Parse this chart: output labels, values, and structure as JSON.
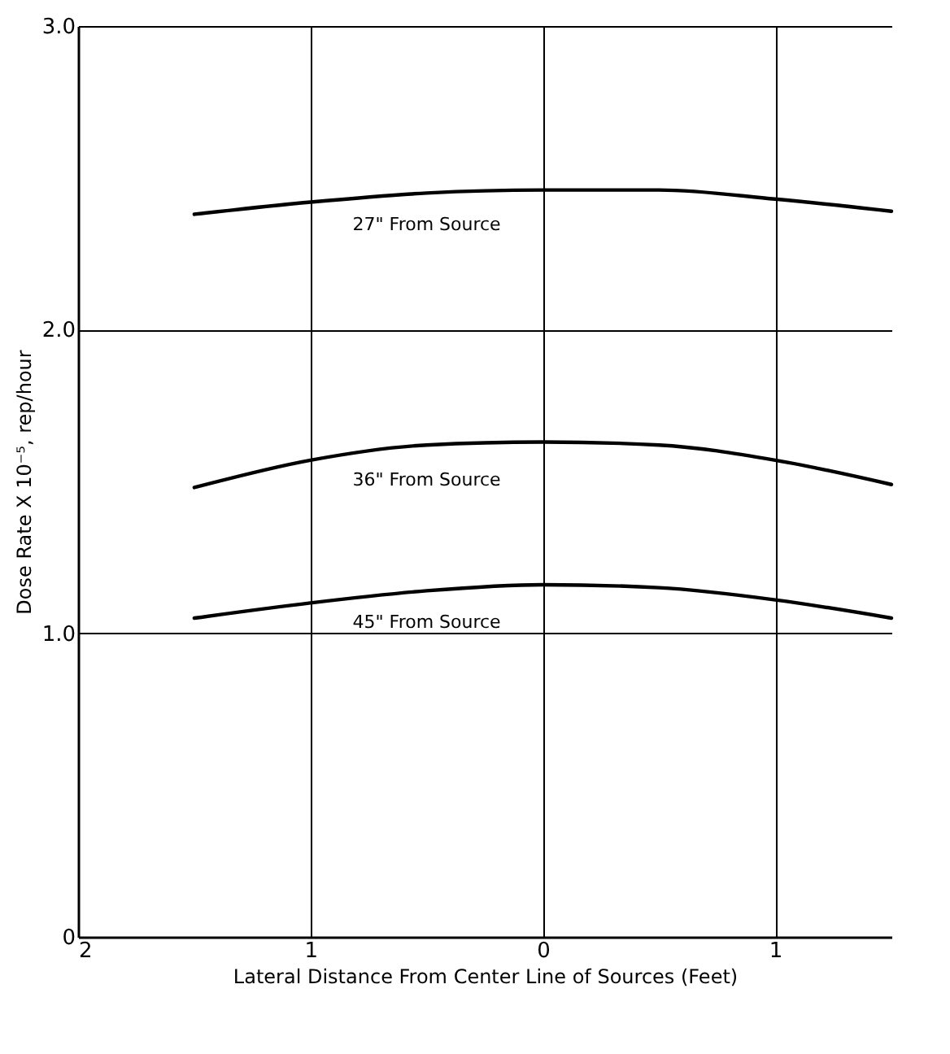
{
  "chart_data": {
    "type": "line",
    "xlabel": "Lateral Distance From Center Line of Sources (Feet)",
    "ylabel": "Dose Rate X 10⁻⁵, rep/hour",
    "x": [
      -1.5,
      -1,
      -0.5,
      0,
      0.5,
      1,
      1.5
    ],
    "series": [
      {
        "name": "27\" From Source",
        "color": "#000000",
        "values": [
          2.38,
          2.42,
          2.45,
          2.46,
          2.46,
          2.43,
          2.39
        ]
      },
      {
        "name": "36\" From Source",
        "color": "#000000",
        "values": [
          1.48,
          1.57,
          1.62,
          1.63,
          1.62,
          1.57,
          1.49
        ]
      },
      {
        "name": "45\" From Source",
        "color": "#000000",
        "values": [
          1.05,
          1.1,
          1.14,
          1.16,
          1.15,
          1.11,
          1.05
        ]
      }
    ],
    "xlim": [
      -2,
      1.5
    ],
    "xticks": [
      {
        "value": -2,
        "label": "2"
      },
      {
        "value": -1,
        "label": "1"
      },
      0,
      1
    ],
    "ylim": [
      0,
      3
    ],
    "yticks": [
      0,
      {
        "value": 1,
        "label": "1.0"
      },
      {
        "value": 2,
        "label": "2.0"
      },
      {
        "value": 3,
        "label": "3.0"
      }
    ],
    "grid": true,
    "legend": false,
    "marker": "none",
    "line_style": "solid"
  }
}
